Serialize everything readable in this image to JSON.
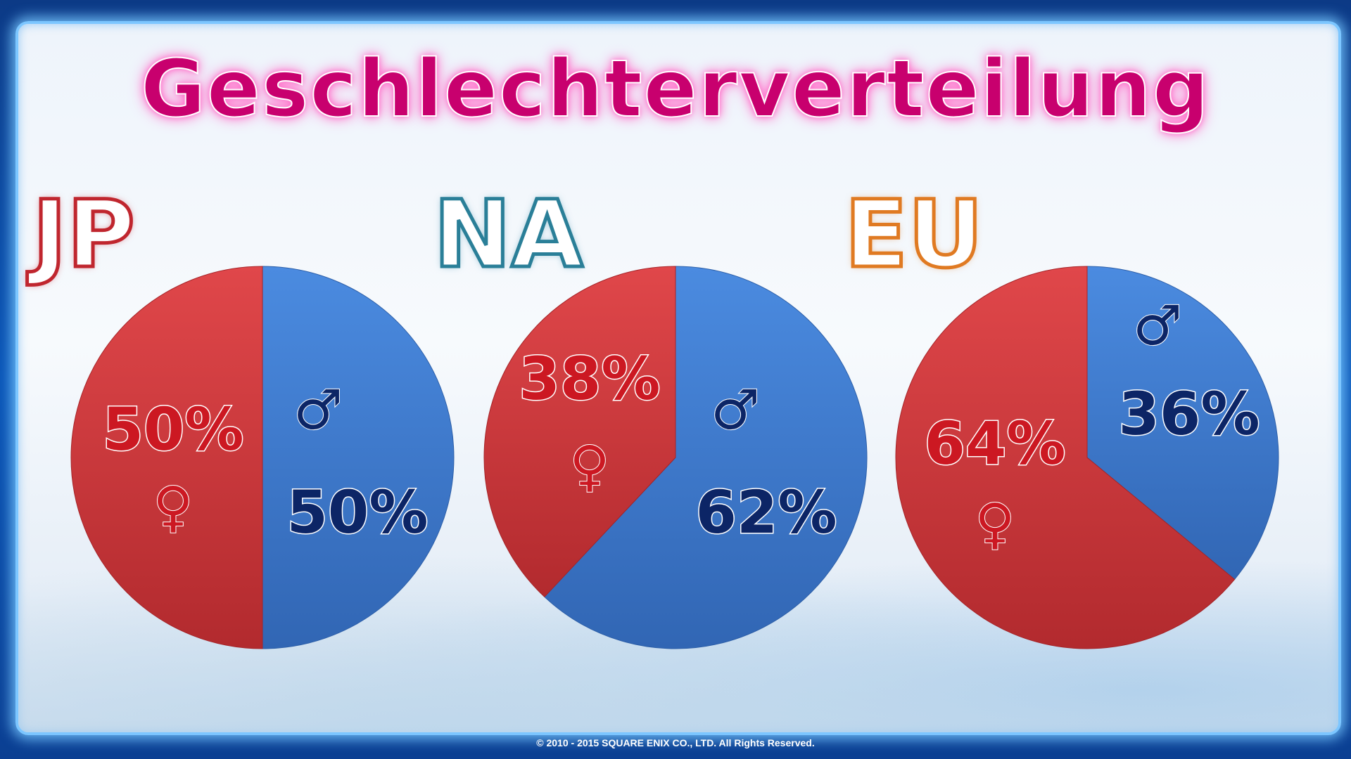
{
  "title": "Geschlechterverteilung",
  "footer": "© 2010 - 2015 SQUARE ENIX CO., LTD. All Rights Reserved.",
  "colors": {
    "female": "#d63a3d",
    "male": "#3f7fd2",
    "title": "#c8006e"
  },
  "chart_data": [
    {
      "type": "pie",
      "title": "JP",
      "slices": [
        {
          "label": "♂",
          "value": 50,
          "text": "50%"
        },
        {
          "label": "♀",
          "value": 50,
          "text": "50%"
        }
      ]
    },
    {
      "type": "pie",
      "title": "NA",
      "slices": [
        {
          "label": "♂",
          "value": 62,
          "text": "62%"
        },
        {
          "label": "♀",
          "value": 38,
          "text": "38%"
        }
      ]
    },
    {
      "type": "pie",
      "title": "EU",
      "slices": [
        {
          "label": "♂",
          "value": 36,
          "text": "36%"
        },
        {
          "label": "♀",
          "value": 64,
          "text": "64%"
        }
      ]
    }
  ]
}
